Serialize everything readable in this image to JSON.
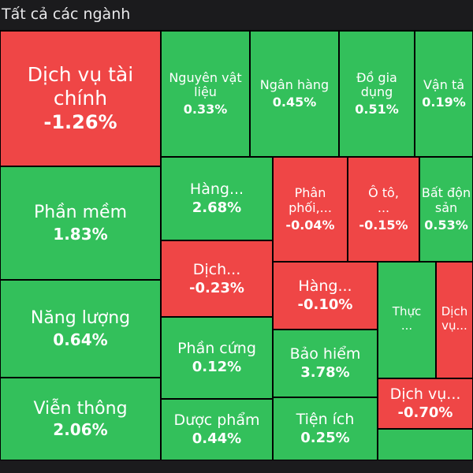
{
  "header": {
    "title": "Tất cả các ngành"
  },
  "colors": {
    "up": "#33c05b",
    "down": "#ef4646",
    "background": "#000000"
  },
  "sectors": [
    {
      "name": "Dịch vụ tài chính",
      "change": "-1.26%",
      "direction": "down"
    },
    {
      "name": "Nguyên vật liệu",
      "change": "0.33%",
      "direction": "up"
    },
    {
      "name": "Ngân hàng",
      "change": "0.45%",
      "direction": "up"
    },
    {
      "name": "Đồ gia dụng",
      "change": "0.51%",
      "direction": "up"
    },
    {
      "name": "Vận tả",
      "change": "0.19%",
      "direction": "up"
    },
    {
      "name": "Phần mềm",
      "change": "1.83%",
      "direction": "up"
    },
    {
      "name": "Hàng...",
      "change": "2.68%",
      "direction": "up"
    },
    {
      "name": "Phân phối,...",
      "change": "-0.04%",
      "direction": "down"
    },
    {
      "name": "Ô tô, ...",
      "change": "-0.15%",
      "direction": "down"
    },
    {
      "name": "Bất độn sản",
      "change": "0.53%",
      "direction": "up"
    },
    {
      "name": "Dịch...",
      "change": "-0.23%",
      "direction": "down"
    },
    {
      "name": "Hàng...",
      "change": "-0.10%",
      "direction": "down"
    },
    {
      "name": "Thực ...",
      "change": "",
      "direction": "up"
    },
    {
      "name": "Dịch vụ...",
      "change": "",
      "direction": "down"
    },
    {
      "name": "Năng lượng",
      "change": "0.64%",
      "direction": "up"
    },
    {
      "name": "Phần cứng",
      "change": "0.12%",
      "direction": "up"
    },
    {
      "name": "Bảo hiểm",
      "change": "3.78%",
      "direction": "up"
    },
    {
      "name": "Dịch vụ...",
      "change": "-0.70%",
      "direction": "down"
    },
    {
      "name": "Viễn thông",
      "change": "2.06%",
      "direction": "up"
    },
    {
      "name": "Dược phẩm",
      "change": "0.44%",
      "direction": "up"
    },
    {
      "name": "Tiện ích",
      "change": "0.25%",
      "direction": "up"
    }
  ]
}
